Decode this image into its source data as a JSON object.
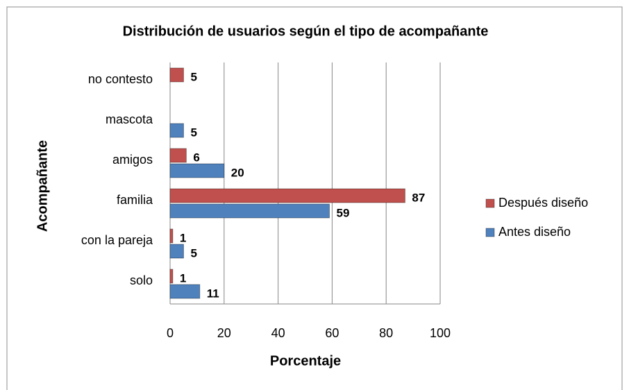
{
  "chart_data": {
    "type": "bar",
    "orientation": "horizontal",
    "title": "Distribución de usuarios según el tipo de acompañante",
    "x_label": "Porcentaje",
    "y_label": "Acompañante",
    "categories": [
      "solo",
      "con la pareja",
      "familia",
      "amigos",
      "mascota",
      "no contesto"
    ],
    "series": [
      {
        "name": "Antes diseño",
        "color": "#4f81bd",
        "values": [
          11,
          5,
          59,
          20,
          5,
          null
        ]
      },
      {
        "name": "Después diseño",
        "color": "#c0504d",
        "values": [
          1,
          1,
          87,
          6,
          null,
          5
        ]
      }
    ],
    "xlim": [
      0,
      100
    ],
    "xticks": [
      0,
      20,
      40,
      60,
      80,
      100
    ],
    "grid": true,
    "legend": "right"
  }
}
